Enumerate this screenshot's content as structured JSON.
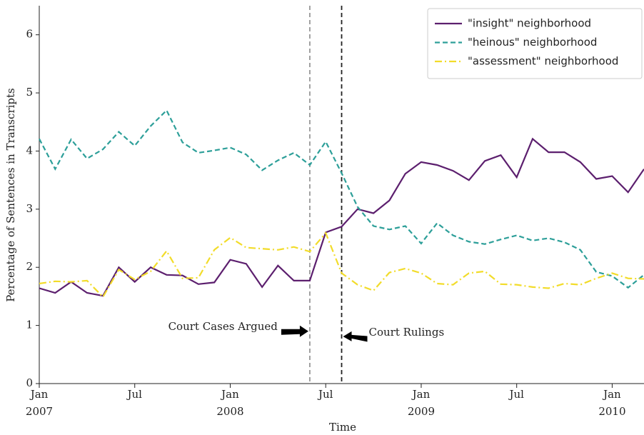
{
  "chart_data": {
    "type": "line",
    "xlabel": "Time",
    "ylabel": "Percentage of Sentences in Transcripts",
    "x": [
      "2007-01",
      "2007-02",
      "2007-03",
      "2007-04",
      "2007-05",
      "2007-06",
      "2007-07",
      "2007-08",
      "2007-09",
      "2007-10",
      "2007-11",
      "2007-12",
      "2008-01",
      "2008-02",
      "2008-03",
      "2008-04",
      "2008-05",
      "2008-06",
      "2008-07",
      "2008-08",
      "2008-09",
      "2008-10",
      "2008-11",
      "2008-12",
      "2009-01",
      "2009-02",
      "2009-03",
      "2009-04",
      "2009-05",
      "2009-06",
      "2009-07",
      "2009-08",
      "2009-09",
      "2009-10",
      "2009-11",
      "2009-12",
      "2010-01",
      "2010-02",
      "2010-03"
    ],
    "series": [
      {
        "name": "\"insight\" neighborhood",
        "color": "#5c1f6e",
        "dash": "solid",
        "values": [
          1.64,
          1.56,
          1.75,
          1.56,
          1.51,
          2.0,
          1.75,
          2.0,
          1.87,
          1.86,
          1.71,
          1.74,
          2.13,
          2.06,
          1.66,
          2.03,
          1.77,
          1.77,
          2.6,
          2.7,
          3.0,
          2.93,
          3.15,
          3.61,
          3.81,
          3.76,
          3.66,
          3.5,
          3.83,
          3.93,
          3.55,
          4.21,
          3.98,
          3.98,
          3.81,
          3.52,
          3.57,
          3.29,
          3.69
        ]
      },
      {
        "name": "\"heinous\" neighborhood",
        "color": "#2d9f99",
        "dash": "dashed",
        "values": [
          4.21,
          3.69,
          4.2,
          3.87,
          4.03,
          4.33,
          4.09,
          4.43,
          4.7,
          4.15,
          3.97,
          4.01,
          4.06,
          3.94,
          3.67,
          3.84,
          3.97,
          3.76,
          4.16,
          3.62,
          3.04,
          2.71,
          2.65,
          2.71,
          2.41,
          2.76,
          2.55,
          2.44,
          2.4,
          2.48,
          2.55,
          2.46,
          2.5,
          2.43,
          2.3,
          1.92,
          1.85,
          1.65,
          1.87
        ]
      },
      {
        "name": "\"assessment\" neighborhood",
        "color": "#f2dc2a",
        "dash": "dashdot",
        "values": [
          1.72,
          1.76,
          1.75,
          1.77,
          1.49,
          1.96,
          1.79,
          1.93,
          2.28,
          1.81,
          1.82,
          2.3,
          2.51,
          2.34,
          2.32,
          2.3,
          2.35,
          2.27,
          2.59,
          1.9,
          1.7,
          1.6,
          1.91,
          1.98,
          1.9,
          1.72,
          1.7,
          1.9,
          1.93,
          1.71,
          1.7,
          1.66,
          1.64,
          1.72,
          1.7,
          1.81,
          1.9,
          1.81,
          1.8
        ]
      }
    ],
    "xlim": [
      "2007-01",
      "2010-03"
    ],
    "xticks": [
      {
        "value": "2007-01",
        "label": "Jan"
      },
      {
        "value": "2007-07",
        "label": "Jul"
      },
      {
        "value": "2008-01",
        "label": "Jan"
      },
      {
        "value": "2008-07",
        "label": "Jul"
      },
      {
        "value": "2009-01",
        "label": "Jan"
      },
      {
        "value": "2009-07",
        "label": "Jul"
      },
      {
        "value": "2010-01",
        "label": "Jan"
      }
    ],
    "xtick_years": [
      {
        "value": "2007-01",
        "label": "2007"
      },
      {
        "value": "2008-01",
        "label": "2008"
      },
      {
        "value": "2009-01",
        "label": "2009"
      },
      {
        "value": "2010-01",
        "label": "2010"
      }
    ],
    "ylim": [
      0,
      6.5
    ],
    "yticks": [
      0,
      1,
      2,
      3,
      4,
      5,
      6
    ],
    "events": [
      {
        "label": "Court Cases Argued",
        "x": "2008-06",
        "color": "#999999"
      },
      {
        "label": "Court Rulings",
        "x": "2008-08",
        "color": "#222222"
      }
    ],
    "legend": "upper right"
  }
}
